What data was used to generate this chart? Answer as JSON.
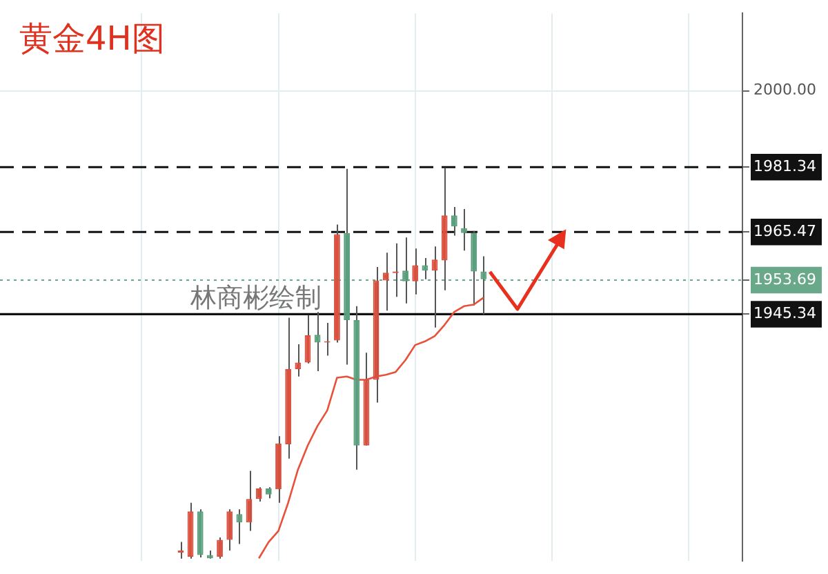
{
  "chart_data": {
    "type": "candlestick",
    "title": "黄金4H图",
    "annotations": [
      "林商彬绘制"
    ],
    "categories": [
      null,
      null,
      null,
      null,
      null,
      null,
      null,
      null,
      null,
      null,
      null,
      null,
      null,
      null,
      null,
      null,
      null,
      null,
      null,
      null,
      null,
      null,
      null,
      null,
      null,
      null,
      null,
      null,
      null,
      null,
      null,
      null,
      null,
      null,
      null,
      null,
      null,
      null,
      null,
      null,
      null,
      null,
      null,
      null,
      null,
      null,
      null,
      null,
      null,
      null,
      null,
      null,
      null,
      null,
      null,
      null,
      null,
      null,
      null,
      null,
      null,
      null,
      null,
      null,
      null,
      null,
      null,
      null,
      null,
      null,
      null,
      null,
      null,
      null,
      null,
      null
    ],
    "ohlc": [
      null,
      null,
      null,
      null,
      null,
      null,
      null,
      null,
      null,
      null,
      null,
      null,
      null,
      null,
      null,
      null,
      null,
      null,
      [
        1887,
        1889.6,
        1885.5,
        1887.5
      ],
      [
        1886,
        1899.2,
        1885.5,
        1897.1
      ],
      [
        1897.1,
        1897.6,
        1885.8,
        1886.4
      ],
      [
        1886.4,
        1887.5,
        1885.5,
        1885.6
      ],
      [
        1886,
        1890.7,
        1885.5,
        1890.1
      ],
      [
        1890.1,
        1897.6,
        1887.5,
        1897.1
      ],
      [
        1896.4,
        1897.6,
        1889.1,
        1894.4
      ],
      [
        1894.4,
        1907,
        1892.3,
        1900.1
      ],
      [
        1900.1,
        1903,
        1899.5,
        1902.7
      ],
      [
        1902.7,
        1903,
        1900.3,
        1901.2
      ],
      [
        1902.5,
        1915.5,
        1899.2,
        1913.7
      ],
      [
        1913.5,
        1944.5,
        1910,
        1931.9
      ],
      [
        1931.9,
        1938,
        1930.1,
        1933.5
      ],
      [
        1933.5,
        1945.1,
        1933.3,
        1940.2
      ],
      [
        1940.3,
        1945.9,
        1931.4,
        1938.4
      ],
      [
        1938.4,
        1943.2,
        1935.2,
        1938.7
      ],
      [
        1938.9,
        1967.3,
        1938.4,
        1964.9
      ],
      [
        1965.2,
        1980.9,
        1933,
        1943.9
      ],
      [
        1943.9,
        1947.3,
        1907.3,
        1913.2
      ],
      [
        1913.2,
        1935.9,
        1913.2,
        1929.3
      ],
      [
        1929.3,
        1956.9,
        1923.7,
        1953.6
      ],
      [
        1953.6,
        1960.4,
        1946.2,
        1955.5
      ],
      [
        1955.4,
        1962.7,
        1949.6,
        1955.8
      ],
      [
        1956,
        1964.1,
        1948,
        1953.4
      ],
      [
        1953.4,
        1961.4,
        1950.2,
        1957.3
      ],
      [
        1957.3,
        1959.1,
        1953.9,
        1956
      ],
      [
        1956,
        1961.9,
        1942.1,
        1958.7
      ],
      [
        1958.5,
        1981.2,
        1951.2,
        1969.5
      ],
      [
        1969.5,
        1971.6,
        1964.6,
        1966.8
      ],
      [
        1966.4,
        1971.1,
        1960.9,
        1965.2
      ],
      [
        1965.2,
        1965.7,
        1947.5,
        1955.8
      ],
      [
        1955.8,
        1959.5,
        1945.3,
        1953.9
      ],
      null,
      null,
      null,
      null,
      null,
      null,
      null,
      null,
      null,
      null,
      null,
      null,
      null,
      null,
      null,
      null,
      null,
      null,
      null,
      null,
      null,
      null,
      null,
      null,
      null,
      null
    ],
    "colors": [
      null,
      null,
      null,
      null,
      null,
      null,
      null,
      null,
      null,
      null,
      null,
      null,
      null,
      null,
      null,
      null,
      null,
      null,
      "#d9503f",
      "#d9503f",
      "#5aa07e",
      "#5aa07e",
      "#d9503f",
      "#d9503f",
      "#5aa07e",
      "#d9503f",
      "#d9503f",
      "#5aa07e",
      "#d9503f",
      "#d9503f",
      "#d9503f",
      "#d9503f",
      "#5aa07e",
      "#d9503f",
      "#d9503f",
      "#5aa07e",
      "#5aa07e",
      "#d9503f",
      "#d9503f",
      "#d9503f",
      "#d9503f",
      "#5aa07e",
      "#d9503f",
      "#5aa07e",
      "#d9503f",
      "#d9503f",
      "#5aa07e",
      "#5aa07e",
      "#5aa07e",
      "#5aa07e",
      null,
      null,
      null,
      null,
      null,
      null,
      null,
      null,
      null,
      null,
      null,
      null,
      null,
      null,
      null,
      null,
      null,
      null,
      null,
      null,
      null,
      null,
      null,
      null,
      null,
      null
    ],
    "series": [
      {
        "type": "line",
        "color": "#e8503a",
        "values": [
          null,
          null,
          null,
          null,
          null,
          null,
          null,
          null,
          null,
          null,
          null,
          null,
          null,
          null,
          null,
          null,
          null,
          null,
          null,
          null,
          null,
          null,
          null,
          null,
          null,
          null,
          1885.6,
          1889.6,
          1892.3,
          1899.2,
          1907.3,
          1913.2,
          1918,
          1921.8,
          1929.8,
          1930.1,
          1929.3,
          1929.3,
          1930.1,
          1930.5,
          1931.2,
          1934.1,
          1937.8,
          1938.7,
          1940,
          1942.7,
          1945.9,
          1947.3,
          1947.7,
          1949.4,
          null,
          null,
          null,
          null,
          null,
          null,
          null,
          null,
          null,
          null,
          null,
          null,
          null,
          null,
          null,
          null,
          null,
          null,
          null,
          null,
          null,
          null,
          null,
          null,
          null,
          null
        ]
      }
    ],
    "ylim": [
      1885,
      2019
    ],
    "yticks": [
      1945.34,
      1953.69,
      1965.47,
      1981.34,
      {
        "value": 2000,
        "label": "2000.00"
      }
    ],
    "ref_lines": [
      {
        "axis": "y",
        "value": 1981.34,
        "color": "#111111",
        "line_style": "dashed"
      },
      {
        "axis": "y",
        "value": 1965.47,
        "color": "#111111",
        "line_style": "dashed"
      },
      {
        "axis": "y",
        "value": 1953.69,
        "color": "#6aa88a",
        "line_style": "dotted"
      },
      {
        "axis": "y",
        "value": 1945.34,
        "color": "#111111",
        "line_style": "solid"
      }
    ],
    "grid": true,
    "tick_labels": "y"
  }
}
